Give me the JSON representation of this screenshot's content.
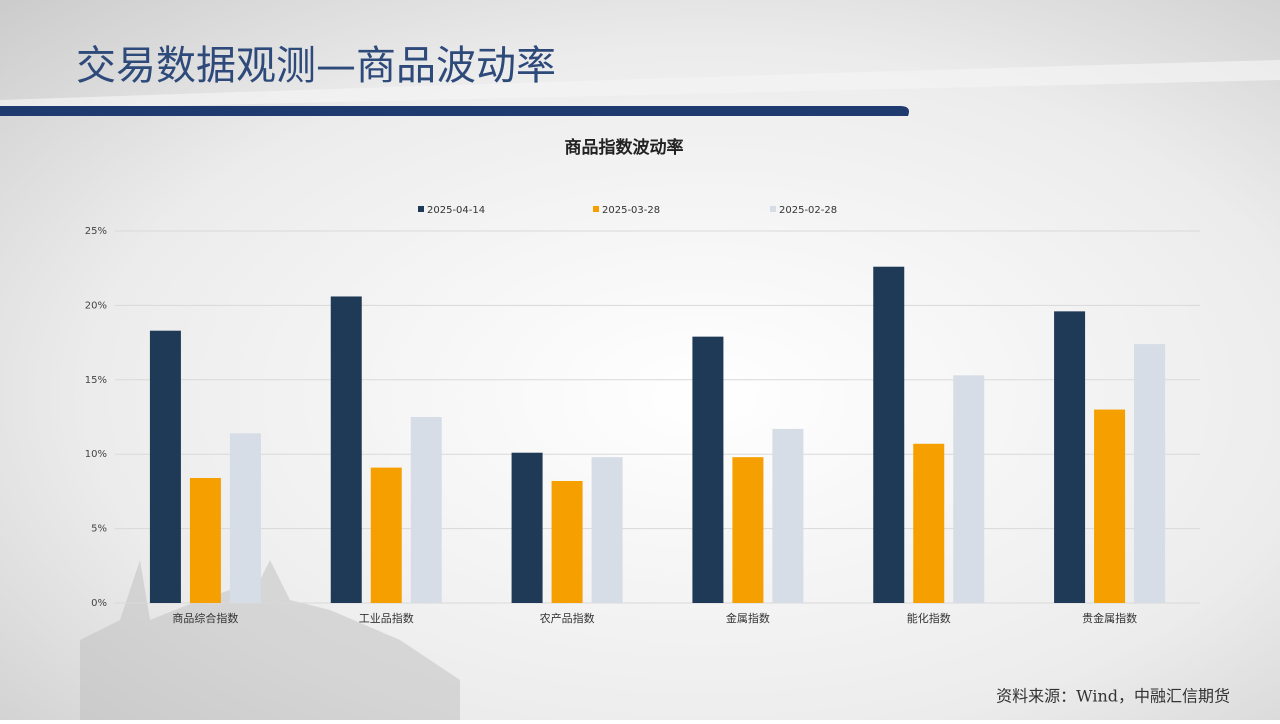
{
  "header": {
    "title": "交易数据观测—商品波动率"
  },
  "chart_data": {
    "type": "bar",
    "title": "商品指数波动率",
    "categories": [
      "商品综合指数",
      "工业品指数",
      "农产品指数",
      "金属指数",
      "能化指数",
      "贵金属指数"
    ],
    "series": [
      {
        "name": "2025-04-14",
        "color": "#1f3a56",
        "values": [
          18.3,
          20.6,
          10.1,
          17.9,
          22.6,
          19.6
        ]
      },
      {
        "name": "2025-03-28",
        "color": "#f5a000",
        "values": [
          8.4,
          9.1,
          8.2,
          9.8,
          10.7,
          13.0
        ]
      },
      {
        "name": "2025-02-28",
        "color": "#d6dde6",
        "values": [
          11.4,
          12.5,
          9.8,
          11.7,
          15.3,
          17.4
        ]
      }
    ],
    "ylim": [
      0,
      25
    ],
    "yticks": [
      {
        "value": 0,
        "label": "0%"
      },
      {
        "value": 5,
        "label": "5%"
      },
      {
        "value": 10,
        "label": "10%"
      },
      {
        "value": 15,
        "label": "15%"
      },
      {
        "value": 20,
        "label": "20%"
      },
      {
        "value": 25,
        "label": "25%"
      }
    ],
    "grid": true,
    "legend": "top"
  },
  "source": "资料来源：Wind，中融汇信期货"
}
